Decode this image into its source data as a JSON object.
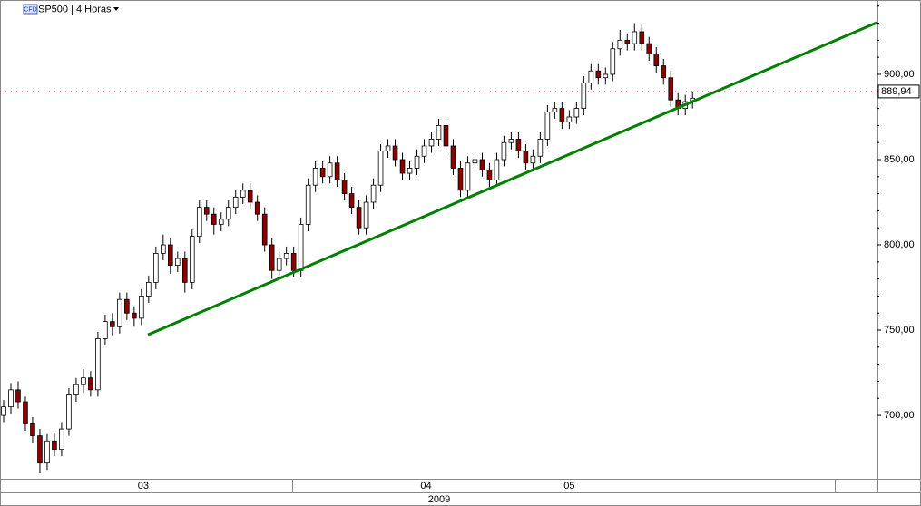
{
  "chart_data": {
    "type": "candlestick",
    "title": "SP500 | 4 Horas",
    "badge": "CFD",
    "candles": [
      [
        700,
        709,
        696,
        705
      ],
      [
        705,
        719,
        701,
        715
      ],
      [
        715,
        720,
        704,
        708
      ],
      [
        708,
        711,
        691,
        695
      ],
      [
        695,
        699,
        684,
        688
      ],
      [
        688,
        692,
        666,
        672
      ],
      [
        672,
        689,
        668,
        685
      ],
      [
        685,
        690,
        676,
        680
      ],
      [
        680,
        696,
        676,
        692
      ],
      [
        692,
        716,
        688,
        712
      ],
      [
        712,
        722,
        708,
        718
      ],
      [
        718,
        727,
        713,
        722
      ],
      [
        722,
        726,
        711,
        715
      ],
      [
        715,
        749,
        711,
        745
      ],
      [
        745,
        759,
        741,
        755
      ],
      [
        755,
        760,
        747,
        752
      ],
      [
        752,
        772,
        748,
        768
      ],
      [
        768,
        772,
        756,
        760
      ],
      [
        760,
        764,
        752,
        757
      ],
      [
        757,
        774,
        753,
        770
      ],
      [
        770,
        782,
        766,
        778
      ],
      [
        778,
        799,
        774,
        795
      ],
      [
        795,
        806,
        791,
        800
      ],
      [
        800,
        804,
        783,
        788
      ],
      [
        788,
        796,
        784,
        792
      ],
      [
        792,
        796,
        772,
        778
      ],
      [
        778,
        809,
        774,
        805
      ],
      [
        805,
        826,
        801,
        822
      ],
      [
        822,
        826,
        814,
        818
      ],
      [
        818,
        822,
        806,
        812
      ],
      [
        812,
        819,
        808,
        815
      ],
      [
        815,
        826,
        811,
        822
      ],
      [
        822,
        832,
        818,
        828
      ],
      [
        828,
        836,
        824,
        832
      ],
      [
        832,
        836,
        821,
        825
      ],
      [
        825,
        829,
        814,
        818
      ],
      [
        818,
        822,
        796,
        800
      ],
      [
        800,
        804,
        780,
        785
      ],
      [
        785,
        796,
        781,
        792
      ],
      [
        792,
        799,
        788,
        795
      ],
      [
        795,
        799,
        781,
        785
      ],
      [
        785,
        816,
        781,
        812
      ],
      [
        812,
        839,
        808,
        835
      ],
      [
        835,
        849,
        831,
        845
      ],
      [
        845,
        849,
        836,
        840
      ],
      [
        840,
        852,
        836,
        848
      ],
      [
        848,
        852,
        834,
        838
      ],
      [
        838,
        842,
        826,
        830
      ],
      [
        830,
        834,
        818,
        822
      ],
      [
        822,
        826,
        806,
        810
      ],
      [
        810,
        829,
        806,
        825
      ],
      [
        825,
        839,
        821,
        835
      ],
      [
        835,
        859,
        831,
        855
      ],
      [
        855,
        862,
        851,
        858
      ],
      [
        858,
        862,
        846,
        850
      ],
      [
        850,
        854,
        838,
        842
      ],
      [
        842,
        849,
        838,
        845
      ],
      [
        845,
        856,
        841,
        852
      ],
      [
        852,
        862,
        848,
        858
      ],
      [
        858,
        866,
        854,
        862
      ],
      [
        862,
        874,
        858,
        870
      ],
      [
        870,
        874,
        854,
        858
      ],
      [
        858,
        862,
        841,
        845
      ],
      [
        845,
        849,
        828,
        832
      ],
      [
        832,
        852,
        828,
        848
      ],
      [
        848,
        854,
        844,
        850
      ],
      [
        850,
        854,
        840,
        844
      ],
      [
        844,
        848,
        834,
        838
      ],
      [
        838,
        854,
        834,
        850
      ],
      [
        850,
        864,
        846,
        860
      ],
      [
        860,
        866,
        856,
        862
      ],
      [
        862,
        866,
        851,
        855
      ],
      [
        855,
        859,
        844,
        848
      ],
      [
        848,
        856,
        844,
        852
      ],
      [
        852,
        866,
        848,
        862
      ],
      [
        862,
        882,
        858,
        878
      ],
      [
        878,
        884,
        874,
        880
      ],
      [
        880,
        884,
        868,
        872
      ],
      [
        872,
        879,
        868,
        875
      ],
      [
        875,
        884,
        871,
        880
      ],
      [
        880,
        899,
        876,
        895
      ],
      [
        895,
        906,
        891,
        902
      ],
      [
        902,
        906,
        894,
        898
      ],
      [
        898,
        904,
        894,
        900
      ],
      [
        900,
        919,
        896,
        915
      ],
      [
        915,
        926,
        911,
        920
      ],
      [
        920,
        924,
        914,
        918
      ],
      [
        918,
        930,
        914,
        925
      ],
      [
        925,
        929,
        914,
        918
      ],
      [
        918,
        922,
        908,
        912
      ],
      [
        912,
        916,
        901,
        905
      ],
      [
        905,
        909,
        894,
        898
      ],
      [
        898,
        902,
        881,
        885
      ],
      [
        885,
        889,
        876,
        880
      ],
      [
        880,
        888,
        876,
        884
      ],
      [
        884,
        890,
        880,
        886
      ]
    ],
    "up_color": "#ffffff",
    "down_color": "#8b0000",
    "xlim": [
      0,
      121
    ],
    "xticks": [
      {
        "value": 19.75,
        "label": "03"
      },
      {
        "value": 58.75,
        "label": "04"
      },
      {
        "value": 78.5,
        "label": "05"
      }
    ],
    "year_label": "2009",
    "ylim": [
      662.8,
      943.6
    ],
    "yticks": [
      {
        "value": 700,
        "label": "700,00"
      },
      {
        "value": 750,
        "label": "750,00"
      },
      {
        "value": 800,
        "label": "800,00"
      },
      {
        "value": 850,
        "label": "850,00"
      },
      {
        "value": 900,
        "label": "900,00"
      }
    ],
    "last_price": {
      "value": 889.94,
      "label": "889,94"
    },
    "trendline": {
      "x": [
        20.4,
        120.9
      ],
      "y": [
        747.3,
        930.3
      ],
      "color": "#008000"
    }
  }
}
